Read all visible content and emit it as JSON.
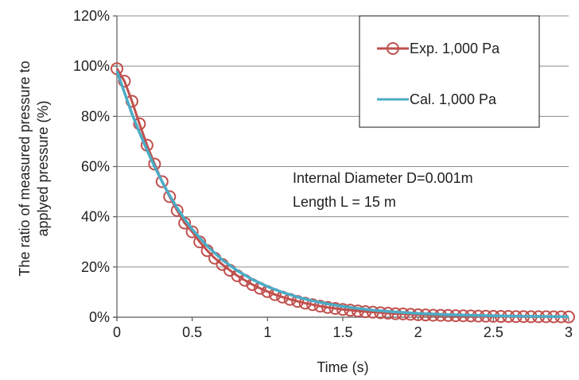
{
  "chart_data": {
    "type": "scatter",
    "title": "",
    "xlabel": "Time (s)",
    "ylabel_lines": [
      "The ratio of measured pressure to",
      "applyed pressure (%)"
    ],
    "xlim": [
      0,
      3
    ],
    "ylim": [
      0,
      120
    ],
    "x_ticks": [
      0,
      0.5,
      1,
      1.5,
      2,
      2.5,
      3
    ],
    "x_tick_labels": [
      "0",
      "0.5",
      "1",
      "1.5",
      "2",
      "2.5",
      "3"
    ],
    "y_ticks": [
      0,
      20,
      40,
      60,
      80,
      100,
      120
    ],
    "y_tick_labels": [
      "0%",
      "20%",
      "40%",
      "60%",
      "80%",
      "100%",
      "120%"
    ],
    "grid": "horizontal",
    "legend_position": "top-right",
    "annotations": [
      "Internal Diameter D=0.001m",
      "Length L = 15 m"
    ],
    "series": [
      {
        "name": "Exp. 1,000 Pa",
        "kind": "line-with-markers",
        "color": "#c0504d",
        "x": [
          0,
          0.05,
          0.1,
          0.15,
          0.2,
          0.25,
          0.3,
          0.35,
          0.4,
          0.45,
          0.5,
          0.55,
          0.6,
          0.65,
          0.7,
          0.75,
          0.8,
          0.85,
          0.9,
          0.95,
          1.0,
          1.05,
          1.1,
          1.15,
          1.2,
          1.25,
          1.3,
          1.35,
          1.4,
          1.45,
          1.5,
          1.55,
          1.6,
          1.65,
          1.7,
          1.75,
          1.8,
          1.85,
          1.9,
          1.95,
          2.0,
          2.05,
          2.1,
          2.15,
          2.2,
          2.25,
          2.3,
          2.35,
          2.4,
          2.45,
          2.5,
          2.55,
          2.6,
          2.65,
          2.7,
          2.75,
          2.8,
          2.85,
          2.9,
          2.95,
          3.0
        ],
        "y": [
          99.0,
          94.0,
          86.0,
          77.0,
          68.5,
          61.0,
          54.0,
          48.0,
          42.5,
          37.5,
          34.0,
          30.0,
          26.5,
          23.5,
          21.0,
          18.7,
          16.5,
          14.7,
          13.0,
          11.5,
          10.2,
          9.0,
          8.0,
          7.1,
          6.3,
          5.6,
          5.0,
          4.4,
          3.9,
          3.5,
          3.1,
          2.8,
          2.5,
          2.2,
          2.0,
          1.8,
          1.6,
          1.4,
          1.3,
          1.15,
          1.0,
          0.9,
          0.8,
          0.75,
          0.7,
          0.6,
          0.55,
          0.5,
          0.45,
          0.4,
          0.35,
          0.3,
          0.3,
          0.25,
          0.25,
          0.2,
          0.2,
          0.2,
          0.15,
          0.15,
          0.1
        ]
      },
      {
        "name": "Cal. 1,000 Pa",
        "kind": "line",
        "color": "#4bacc6",
        "x": [
          0,
          0.05,
          0.1,
          0.15,
          0.2,
          0.25,
          0.3,
          0.35,
          0.4,
          0.45,
          0.5,
          0.6,
          0.7,
          0.8,
          0.9,
          1.0,
          1.1,
          1.2,
          1.3,
          1.4,
          1.5,
          1.6,
          1.7,
          1.8,
          1.9,
          2.0,
          2.2,
          2.4,
          2.6,
          2.8,
          3.0
        ],
        "y": [
          98.0,
          89.5,
          81.0,
          73.5,
          66.5,
          60.0,
          54.0,
          48.5,
          43.5,
          39.0,
          35.0,
          28.3,
          22.8,
          18.5,
          15.0,
          12.2,
          9.9,
          8.0,
          6.5,
          5.3,
          4.3,
          3.5,
          2.8,
          2.3,
          1.9,
          1.5,
          1.0,
          0.7,
          0.45,
          0.3,
          0.2
        ]
      }
    ]
  }
}
